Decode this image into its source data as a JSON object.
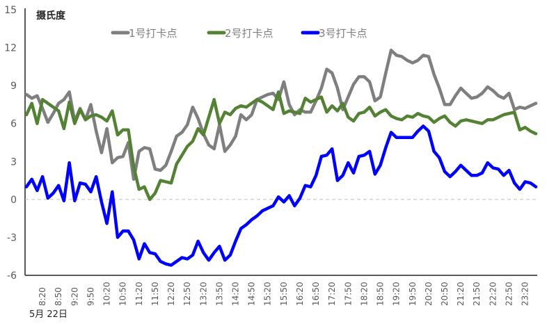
{
  "chart_data": {
    "type": "line",
    "ylabel": "摄氏度",
    "date_label": "5月 22日",
    "ylim": [
      -6,
      15
    ],
    "yticks": [
      -6,
      -3,
      0,
      3,
      6,
      9,
      12,
      15
    ],
    "grid": false,
    "zero_line": "dashed",
    "legend_placement": "top",
    "categories": [
      "7:50",
      "8:00",
      "8:10",
      "8:20",
      "8:30",
      "8:40",
      "8:50",
      "9:00",
      "9:10",
      "9:20",
      "9:30",
      "9:40",
      "9:50",
      "10:00",
      "10:10",
      "10:20",
      "10:30",
      "10:40",
      "10:50",
      "11:00",
      "11:10",
      "11:20",
      "11:30",
      "11:40",
      "11:50",
      "12:00",
      "12:10",
      "12:20",
      "12:30",
      "12:40",
      "12:50",
      "13:00",
      "13:10",
      "13:20",
      "13:30",
      "13:40",
      "13:50",
      "14:00",
      "14:10",
      "14:20",
      "14:30",
      "14:40",
      "14:50",
      "15:00",
      "15:10",
      "15:20",
      "15:30",
      "15:40",
      "15:50",
      "16:00",
      "16:10",
      "16:20",
      "16:30",
      "16:40",
      "16:50",
      "17:00",
      "17:10",
      "17:20",
      "17:30",
      "17:40",
      "17:50",
      "18:00",
      "18:10",
      "18:20",
      "18:30",
      "18:40",
      "18:50",
      "19:00",
      "19:10",
      "19:20",
      "19:30",
      "19:40",
      "19:50",
      "20:00",
      "20:10",
      "20:20",
      "20:30",
      "20:40",
      "20:50",
      "21:00",
      "21:10",
      "21:20",
      "21:30",
      "21:40",
      "21:50",
      "22:00",
      "22:10",
      "22:20",
      "22:30",
      "22:40",
      "22:50",
      "23:00",
      "23:10",
      "23:20",
      "23:30",
      "23:40"
    ],
    "x_tick_labels": [
      "8:20",
      "8:50",
      "9:20",
      "9:50",
      "10:20",
      "10:50",
      "11:20",
      "11:50",
      "12:20",
      "12:50",
      "13:20",
      "13:50",
      "14:20",
      "14:50",
      "15:20",
      "15:50",
      "16:20",
      "16:50",
      "17:20",
      "17:50",
      "18:20",
      "18:50",
      "19:20",
      "19:50",
      "20:20",
      "20:50",
      "21:20",
      "21:50",
      "22:20",
      "22:50",
      "23:20"
    ],
    "series": [
      {
        "name": "1号打卡点",
        "color": "#7f7f7f",
        "values": [
          8.3,
          8.0,
          8.2,
          7.2,
          6.1,
          6.8,
          7.6,
          7.9,
          8.5,
          6.2,
          7.2,
          6.3,
          7.5,
          5.4,
          3.7,
          5.6,
          2.9,
          3.3,
          3.4,
          4.5,
          1.6,
          3.8,
          4.1,
          4.0,
          2.4,
          2.3,
          2.7,
          3.8,
          5.0,
          5.3,
          5.9,
          7.3,
          6.4,
          5.2,
          4.3,
          4.0,
          5.9,
          3.8,
          4.3,
          5.0,
          6.7,
          6.3,
          6.7,
          7.9,
          8.1,
          8.3,
          8.4,
          7.9,
          9.3,
          7.5,
          6.7,
          7.1,
          6.9,
          6.9,
          7.8,
          8.8,
          10.3,
          10.0,
          8.8,
          7.1,
          8.1,
          9.1,
          9.7,
          9.7,
          9.3,
          7.8,
          8.1,
          10.0,
          11.8,
          11.4,
          11.3,
          11.0,
          10.8,
          11.0,
          11.4,
          11.3,
          9.9,
          8.8,
          7.5,
          7.5,
          8.2,
          8.8,
          8.4,
          8.0,
          8.1,
          8.4,
          8.9,
          8.6,
          8.2,
          8.0,
          8.4,
          7.1,
          7.3,
          7.2,
          7.4,
          7.6
        ]
      },
      {
        "name": "2号打卡点",
        "color": "#548235",
        "values": [
          6.7,
          7.6,
          6.0,
          7.9,
          7.6,
          7.3,
          7.0,
          5.6,
          7.7,
          6.0,
          7.1,
          6.3,
          6.6,
          6.7,
          6.5,
          6.2,
          7.0,
          5.1,
          5.5,
          5.5,
          2.6,
          0.8,
          1.0,
          0.0,
          0.5,
          1.5,
          1.4,
          1.3,
          2.8,
          3.5,
          4.2,
          4.6,
          5.6,
          5.1,
          6.5,
          7.9,
          6.0,
          6.9,
          6.7,
          7.2,
          7.4,
          7.3,
          7.6,
          7.9,
          7.7,
          7.4,
          7.1,
          8.5,
          6.8,
          7.0,
          6.9,
          6.8,
          8.0,
          7.7,
          7.9,
          8.1,
          6.9,
          7.4,
          7.0,
          7.6,
          6.5,
          6.2,
          6.8,
          6.9,
          7.3,
          6.6,
          6.9,
          7.1,
          6.6,
          6.4,
          6.3,
          6.6,
          6.5,
          6.8,
          6.6,
          6.5,
          6.1,
          6.4,
          6.6,
          6.1,
          5.8,
          6.2,
          6.3,
          6.2,
          6.1,
          6.0,
          6.3,
          6.3,
          6.5,
          6.7,
          6.8,
          6.9,
          5.5,
          5.7,
          5.4,
          5.2
        ]
      },
      {
        "name": "3号打卡点",
        "color": "#0000ff",
        "values": [
          1.0,
          1.6,
          0.7,
          1.8,
          0.1,
          0.5,
          1.1,
          -0.1,
          2.9,
          -0.1,
          1.3,
          1.2,
          0.6,
          1.8,
          -0.2,
          -1.9,
          0.6,
          -3.0,
          -2.5,
          -2.5,
          -3.2,
          -4.7,
          -3.5,
          -4.2,
          -4.3,
          -4.9,
          -5.1,
          -5.2,
          -4.9,
          -4.6,
          -4.7,
          -4.4,
          -3.3,
          -4.2,
          -4.8,
          -4.2,
          -3.7,
          -4.8,
          -4.4,
          -3.3,
          -2.3,
          -2.0,
          -1.6,
          -1.3,
          -0.9,
          -0.7,
          -0.5,
          0.2,
          -0.2,
          0.3,
          -0.5,
          0.1,
          1.1,
          1.0,
          1.9,
          3.4,
          3.5,
          4.0,
          1.5,
          1.9,
          2.9,
          2.1,
          3.4,
          3.5,
          3.8,
          2.0,
          2.7,
          4.1,
          5.3,
          4.9,
          4.9,
          4.9,
          4.9,
          5.4,
          5.8,
          5.4,
          3.8,
          3.3,
          2.2,
          1.8,
          2.2,
          2.7,
          2.3,
          1.9,
          1.9,
          2.1,
          2.9,
          2.5,
          2.4,
          1.9,
          2.3,
          1.3,
          0.8,
          1.4,
          1.3,
          1.0
        ]
      }
    ]
  }
}
